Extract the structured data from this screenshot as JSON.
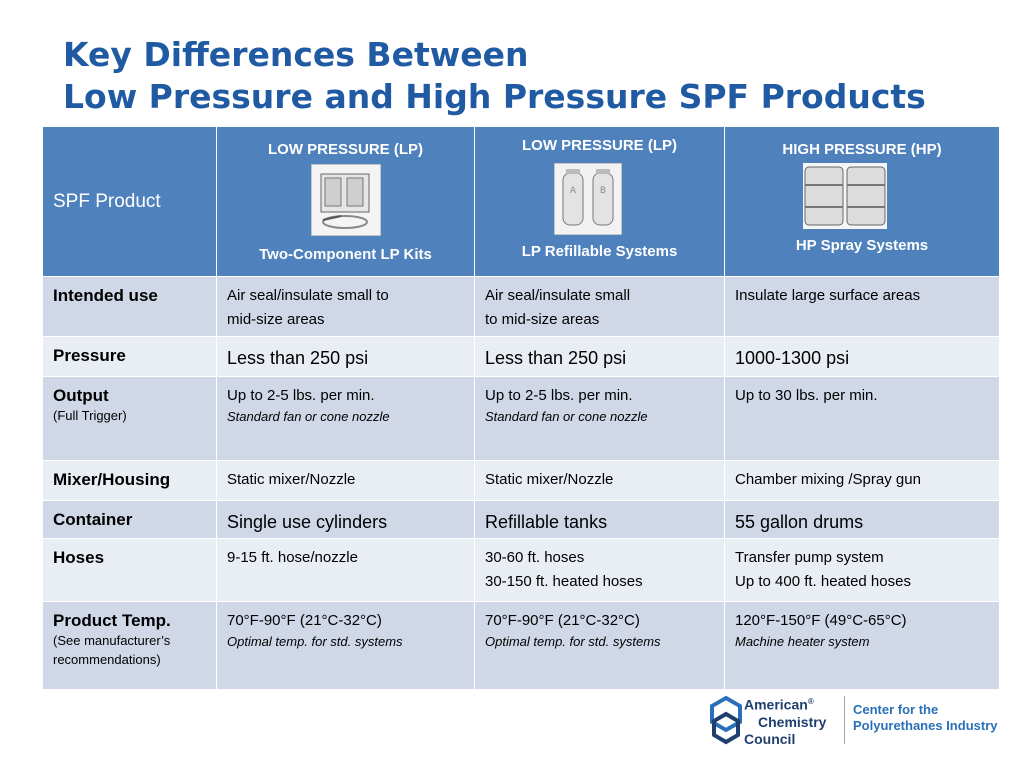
{
  "title": {
    "line1": "Key Differences Between",
    "line2": "Low Pressure and High Pressure SPF Products"
  },
  "header": {
    "label": "SPF Product",
    "columns": [
      {
        "top": "LOW PRESSURE (LP)",
        "caption": "Two-Component LP Kits",
        "image": "lp-kit-box-image"
      },
      {
        "top": "LOW PRESSURE (LP)",
        "caption": "LP Refillable Systems",
        "image": "lp-refillable-tanks-image"
      },
      {
        "top": "HIGH PRESSURE (HP)",
        "caption": "HP Spray Systems",
        "image": "hp-drums-image"
      }
    ]
  },
  "rows": [
    {
      "label": "Intended use",
      "sub": "",
      "cells": [
        {
          "lines": [
            "Air seal/insulate small to",
            "mid-size areas"
          ],
          "italic": ""
        },
        {
          "lines": [
            "Air seal/insulate small",
            "to mid-size areas"
          ],
          "italic": ""
        },
        {
          "lines": [
            "Insulate large surface areas"
          ],
          "italic": ""
        }
      ]
    },
    {
      "label": "Pressure",
      "sub": "",
      "cells": [
        {
          "lines": [
            "Less than 250 psi"
          ],
          "italic": ""
        },
        {
          "lines": [
            "Less than 250 psi"
          ],
          "italic": ""
        },
        {
          "lines": [
            "1000-1300 psi"
          ],
          "italic": ""
        }
      ]
    },
    {
      "label": "Output",
      "sub": "(Full Trigger)",
      "cells": [
        {
          "lines": [
            "Up to 2-5 lbs. per min."
          ],
          "italic": "Standard fan or cone nozzle"
        },
        {
          "lines": [
            "Up to 2-5 lbs. per min."
          ],
          "italic": "Standard fan or cone nozzle"
        },
        {
          "lines": [
            "Up to 30 lbs. per min."
          ],
          "italic": ""
        }
      ]
    },
    {
      "label": "Mixer/Housing",
      "sub": "",
      "cells": [
        {
          "lines": [
            "Static mixer/Nozzle"
          ],
          "italic": ""
        },
        {
          "lines": [
            "Static mixer/Nozzle"
          ],
          "italic": ""
        },
        {
          "lines": [
            "Chamber mixing /Spray gun"
          ],
          "italic": ""
        }
      ]
    },
    {
      "label": "Container",
      "sub": "",
      "cells": [
        {
          "lines": [
            "Single use cylinders"
          ],
          "italic": ""
        },
        {
          "lines": [
            "Refillable tanks"
          ],
          "italic": ""
        },
        {
          "lines": [
            "55 gallon drums"
          ],
          "italic": ""
        }
      ]
    },
    {
      "label": "Hoses",
      "sub": "",
      "cells": [
        {
          "lines": [
            "9-15 ft. hose/nozzle"
          ],
          "italic": ""
        },
        {
          "lines": [
            "30-60 ft. hoses",
            "30-150 ft. heated hoses"
          ],
          "italic": ""
        },
        {
          "lines": [
            "Transfer pump system",
            "Up to 400 ft. heated hoses"
          ],
          "italic": ""
        }
      ]
    },
    {
      "label": "Product Temp.",
      "sub": "(See manufacturer’s recommendations)",
      "cells": [
        {
          "lines": [
            "70°F-90°F (21°C-32°C)"
          ],
          "italic": "Optimal temp. for std. systems"
        },
        {
          "lines": [
            "70°F-90°F (21°C-32°C)"
          ],
          "italic": "Optimal temp. for std. systems"
        },
        {
          "lines": [
            "120°F-150°F (49°C-65°C)"
          ],
          "italic": "Machine heater system"
        }
      ]
    }
  ],
  "logo": {
    "acc": [
      "American",
      "Chemistry",
      "Council"
    ],
    "cpi": [
      "Center for the",
      "Polyurethanes Industry"
    ],
    "reg": "®"
  },
  "colors": {
    "title": "#1f5aa3",
    "header_bg": "#4f81bd",
    "row_dark": "#d0d8e8",
    "row_light": "#e9edf4"
  }
}
